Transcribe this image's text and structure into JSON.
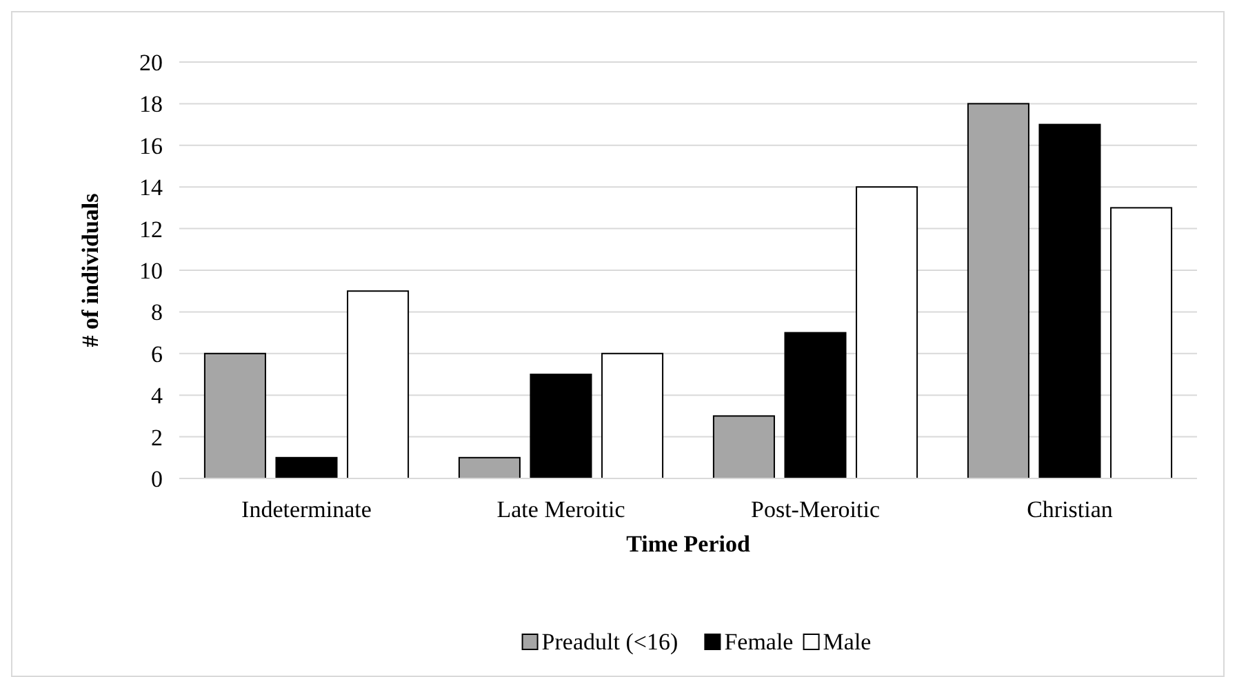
{
  "chart_data": {
    "type": "bar",
    "xlabel": "Time Period",
    "ylabel": "# of individuals",
    "categories": [
      "Indeterminate",
      "Late Meroitic",
      "Post-Meroitic",
      "Christian"
    ],
    "series": [
      {
        "name": "Preadult (<16)",
        "color": "#a6a6a6",
        "values": [
          6,
          1,
          3,
          18
        ]
      },
      {
        "name": "Female",
        "color": "#000000",
        "values": [
          1,
          5,
          7,
          17
        ]
      },
      {
        "name": "Male",
        "color": "#ffffff",
        "values": [
          9,
          6,
          14,
          13
        ]
      }
    ],
    "ylim": [
      0,
      20
    ],
    "yticks": [
      0,
      2,
      4,
      6,
      8,
      10,
      12,
      14,
      16,
      18,
      20
    ],
    "grid": "y",
    "legend": "bottom"
  }
}
